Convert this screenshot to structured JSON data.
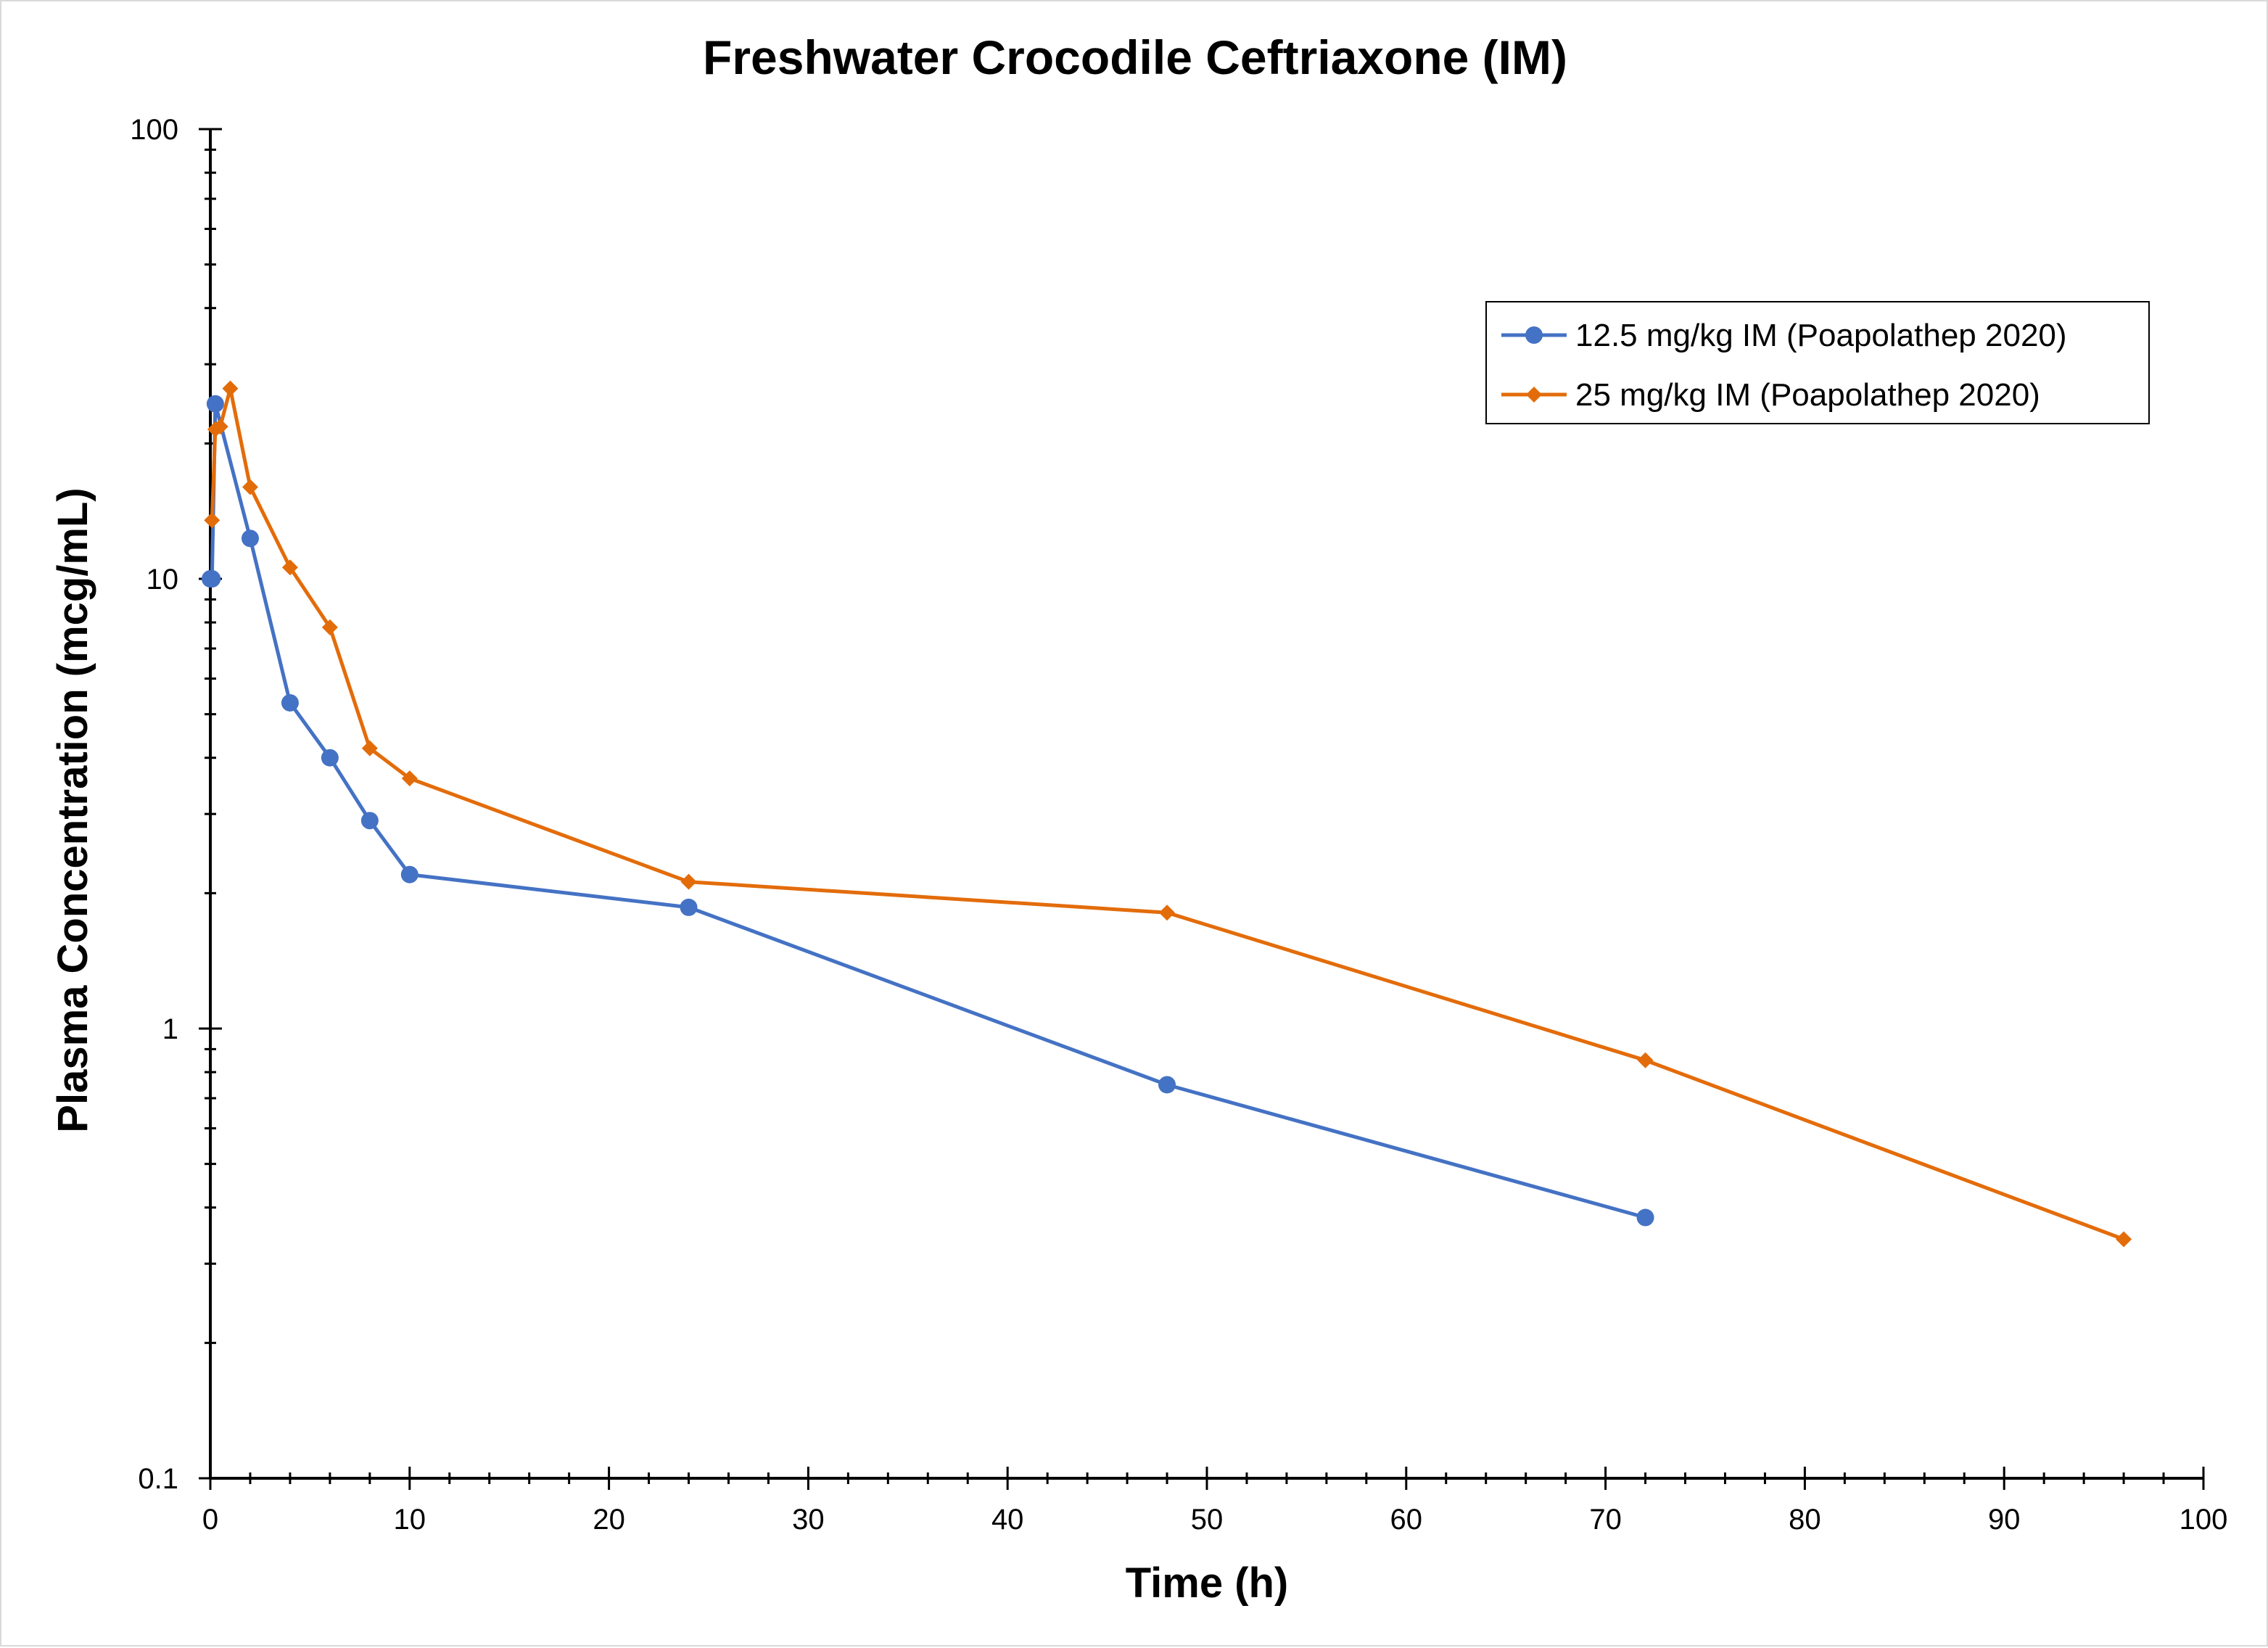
{
  "chart_data": {
    "type": "line",
    "title": "Freshwater Crocodile Ceftriaxone (IM)",
    "xlabel": "Time (h)",
    "ylabel": "Plasma Concentration (mcg/mL)",
    "xlim": [
      0,
      100
    ],
    "ylim": [
      0.1,
      100
    ],
    "yscale": "log",
    "x_ticks": [
      "0",
      "10",
      "20",
      "30",
      "40",
      "50",
      "60",
      "70",
      "80",
      "90",
      "100"
    ],
    "y_ticks": [
      "0.1",
      "1",
      "10",
      "100"
    ],
    "grid": false,
    "legend_position": "top-right",
    "series": [
      {
        "name": "12.5 mg/kg IM (Poapolathep 2020)",
        "color": "#4472C4",
        "marker": "circle",
        "x": [
          0,
          0.083,
          0.25,
          2,
          4,
          6,
          8,
          10,
          24,
          48,
          72
        ],
        "y": [
          10.0,
          10.0,
          24.5,
          12.3,
          5.3,
          4.0,
          2.9,
          2.2,
          1.86,
          0.75,
          0.38
        ]
      },
      {
        "name": "25 mg/kg IM (Poapolathep 2020)",
        "color": "#E36C0A",
        "marker": "diamond",
        "x": [
          0.083,
          0.25,
          0.5,
          1,
          2,
          4,
          6,
          8,
          10,
          24,
          48,
          72,
          96
        ],
        "y": [
          13.5,
          21.5,
          21.8,
          26.5,
          16.0,
          10.6,
          7.8,
          4.2,
          3.6,
          2.12,
          1.81,
          0.85,
          0.34
        ]
      }
    ]
  }
}
